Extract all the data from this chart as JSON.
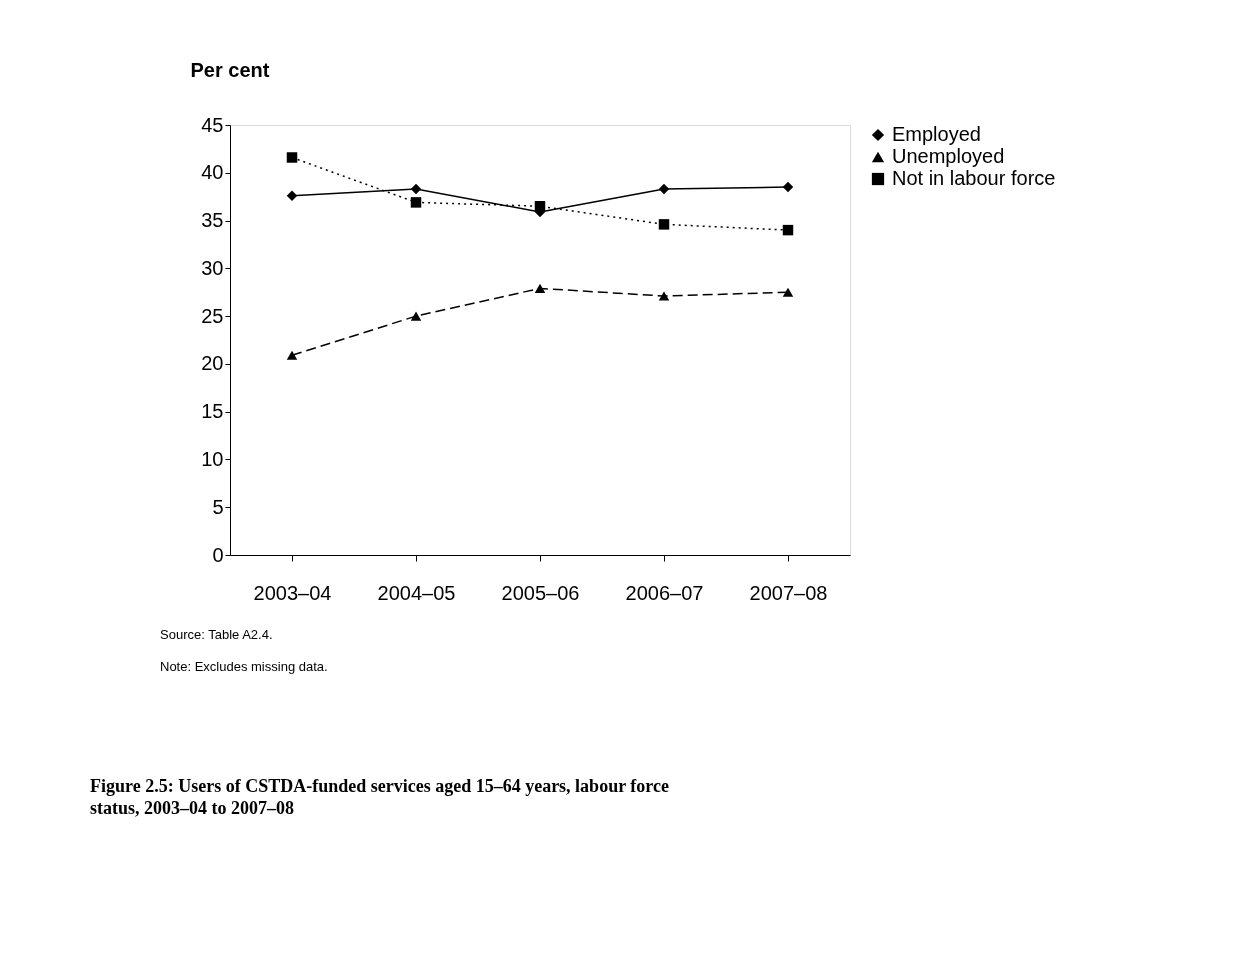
{
  "chart_data": {
    "type": "line",
    "title": "Figure 2.5: Users of CSTDA-funded services aged 15–64 years, labour force status, 2003–04 to 2007–08",
    "ylabel": "Per cent",
    "categories": [
      "2003–04",
      "2004–05",
      "2005–06",
      "2006–07",
      "2007–08"
    ],
    "series": [
      {
        "name": "Employed",
        "color": "#000000",
        "marker": "diamond",
        "line_style": "solid",
        "values": [
          37.6,
          38.3,
          35.9,
          38.3,
          38.5
        ]
      },
      {
        "name": "Unemployed",
        "color": "#000000",
        "marker": "triangle",
        "line_style": "dashed",
        "values": [
          20.9,
          25.0,
          27.9,
          27.1,
          27.5
        ]
      },
      {
        "name": "Not in labour force",
        "color": "#000000",
        "marker": "square",
        "line_style": "dotted",
        "values": [
          41.6,
          36.9,
          36.5,
          34.6,
          34.0
        ]
      }
    ],
    "ylim": [
      0,
      45
    ],
    "yticks": [
      0,
      5,
      10,
      15,
      20,
      25,
      30,
      35,
      40,
      45
    ],
    "grid": false,
    "legend": "right",
    "annotations": [
      "Source: Table A2.4.",
      "Note: Excludes missing data."
    ]
  }
}
